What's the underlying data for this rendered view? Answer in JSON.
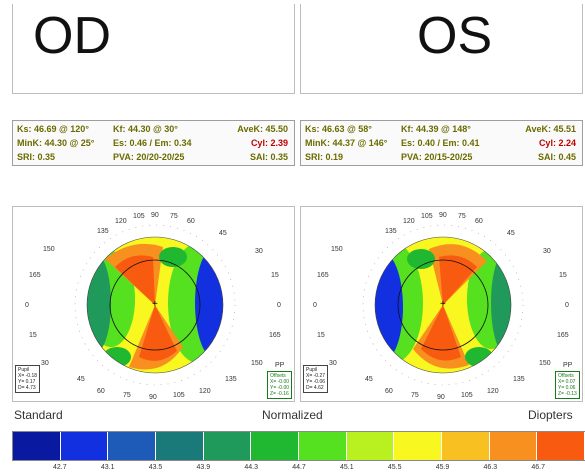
{
  "eyes": {
    "od": {
      "title": "OD",
      "ks": "Ks: 46.69 @ 120°",
      "kf": "Kf: 44.30 @ 30°",
      "avek": "AveK: 45.50",
      "mink": "MinK: 44.30 @ 25°",
      "es_em": "Es: 0.46 / Em: 0.34",
      "cyl_label": "Cyl:",
      "cyl_value": "2.39",
      "sri": "SRI: 0.35",
      "pva": "PVA: 20/20-20/25",
      "sai": "SAI: 0.35",
      "pupil": [
        "Pupil",
        "X= -0.18",
        "Y= 0.17",
        "D= 4.73"
      ],
      "offsets": [
        "Offsets",
        "X= -0.00",
        "Y= -0.00",
        "Z= -0.16"
      ]
    },
    "os": {
      "title": "OS",
      "ks": "Ks: 46.63 @ 58°",
      "kf": "Kf: 44.39 @ 148°",
      "avek": "AveK: 45.51",
      "mink": "MinK: 44.37 @ 146°",
      "es_em": "Es: 0.40 / Em: 0.41",
      "cyl_label": "Cyl:",
      "cyl_value": "2.24",
      "sri": "SRI: 0.19",
      "pva": "PVA: 20/15-20/25",
      "sai": "SAI: 0.45",
      "pupil": [
        "Pupil",
        "X= -0.27",
        "Y= -0.06",
        "D= 4.62"
      ],
      "offsets": [
        "Offsets",
        "X= 0.07",
        "Y= 0.06",
        "Z= -0.13"
      ]
    }
  },
  "map_ticks": {
    "top": [
      "135",
      "120",
      "105",
      "90",
      "75",
      "60",
      "45"
    ],
    "left": [
      "150",
      "165",
      "0",
      "15",
      "30"
    ],
    "right": [
      "30",
      "15",
      "0",
      "165",
      "150"
    ],
    "bottom": [
      "45",
      "60",
      "75",
      "90",
      "105",
      "120",
      "135"
    ],
    "pp": "PP"
  },
  "captions": {
    "standard": "Standard",
    "normalized": "Normalized",
    "diopters": "Diopters"
  },
  "scale": {
    "colors": [
      "#0a1aa0",
      "#1230e0",
      "#1e5ab8",
      "#1a7a7a",
      "#1f9a5a",
      "#20b830",
      "#55e020",
      "#b8f020",
      "#f8f820",
      "#f8c020",
      "#f89020",
      "#f85a10"
    ],
    "labels": [
      "42.7",
      "43.1",
      "43.5",
      "43.9",
      "44.3",
      "44.7",
      "45.1",
      "45.5",
      "45.9",
      "46.3",
      "46.7"
    ]
  }
}
